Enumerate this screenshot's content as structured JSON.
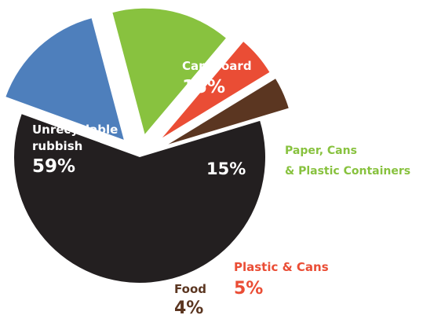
{
  "chart_data": {
    "type": "pie",
    "style": "exploded",
    "slices": [
      {
        "label_lines": [
          "Cardboard"
        ],
        "value": 15,
        "display": "15%",
        "color": "#4e7fbc",
        "label_placement": "inside"
      },
      {
        "label_lines": [
          "Paper, Cans",
          "& Plastic Containers"
        ],
        "value": 15,
        "display": "15%",
        "color": "#88c23f",
        "label_placement": "outside-right"
      },
      {
        "label_lines": [
          "Plastic & Cans"
        ],
        "value": 5,
        "display": "5%",
        "color": "#ea4d35",
        "label_placement": "outside-below"
      },
      {
        "label_lines": [
          "Food"
        ],
        "value": 4,
        "display": "4%",
        "color": "#5b3621",
        "label_placement": "outside-below"
      },
      {
        "label_lines": [
          "Unrecyclable",
          "rubbish"
        ],
        "value": 59,
        "display": "59%",
        "color": "#231f20",
        "label_placement": "inside"
      }
    ]
  }
}
